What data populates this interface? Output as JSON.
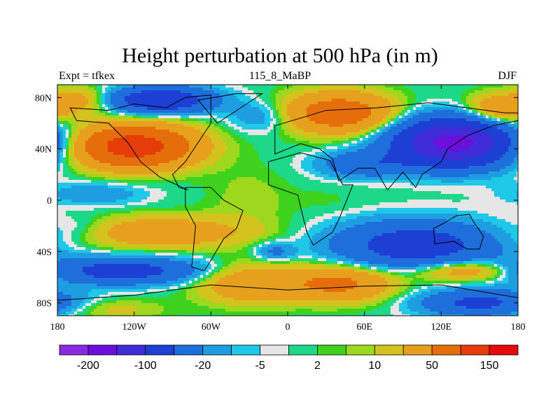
{
  "title": "Height perturbation at 500 hPa (in m)",
  "subtitle_left": "Expt = tfkex",
  "subtitle_center": "115_8_MaBP",
  "subtitle_right": "DJF",
  "chart_data": {
    "type": "heatmap",
    "title": "Height perturbation at 500 hPa (in m)",
    "xlim": [
      -180,
      180
    ],
    "ylim": [
      -90,
      90
    ],
    "x_ticks": [
      {
        "value": -180,
        "label": "180"
      },
      {
        "value": -120,
        "label": "120W"
      },
      {
        "value": -60,
        "label": "60W"
      },
      {
        "value": 0,
        "label": "0"
      },
      {
        "value": 60,
        "label": "60E"
      },
      {
        "value": 120,
        "label": "120E"
      },
      {
        "value": 180,
        "label": "180"
      }
    ],
    "y_ticks": [
      {
        "value": 80,
        "label": "80N"
      },
      {
        "value": 40,
        "label": "40N"
      },
      {
        "value": 0,
        "label": "0"
      },
      {
        "value": -40,
        "label": "40S"
      },
      {
        "value": -80,
        "label": "80S"
      }
    ],
    "colorbar": {
      "colors": [
        "#8a2be2",
        "#6a0fdc",
        "#3f2bd8",
        "#1e3fd4",
        "#1e6fdc",
        "#1e9ee0",
        "#1ec8e6",
        "#e6e6e6",
        "#1ed88a",
        "#3ed21e",
        "#9ed81e",
        "#d4c21e",
        "#e6a01e",
        "#e66e0a",
        "#e63c0a",
        "#e60a0a"
      ],
      "labels": [
        {
          "after_box": 1,
          "text": "-200"
        },
        {
          "after_box": 3,
          "text": "-100"
        },
        {
          "after_box": 5,
          "text": "-20"
        },
        {
          "after_box": 7,
          "text": "-5"
        },
        {
          "after_box": 9,
          "text": "2"
        },
        {
          "after_box": 11,
          "text": "10"
        },
        {
          "after_box": 13,
          "text": "50"
        },
        {
          "after_box": 15,
          "text": "150"
        }
      ]
    },
    "anomaly_blobs": [
      {
        "lon": -120,
        "lat": 42,
        "rlon": 45,
        "rlat": 16,
        "amp": 130
      },
      {
        "lon": -100,
        "lat": 78,
        "rlon": 40,
        "rlat": 10,
        "amp": -90
      },
      {
        "lon": -160,
        "lat": 78,
        "rlon": 25,
        "rlat": 10,
        "amp": 30
      },
      {
        "lon": 40,
        "lat": 68,
        "rlon": 40,
        "rlat": 15,
        "amp": 80
      },
      {
        "lon": 130,
        "lat": 45,
        "rlon": 45,
        "rlat": 18,
        "amp": -170
      },
      {
        "lon": 60,
        "lat": 28,
        "rlon": 35,
        "rlat": 10,
        "amp": -40
      },
      {
        "lon": 165,
        "lat": 70,
        "rlon": 25,
        "rlat": 12,
        "amp": 45
      },
      {
        "lon": -20,
        "lat": 65,
        "rlon": 25,
        "rlat": 12,
        "amp": -20
      },
      {
        "lon": -150,
        "lat": 5,
        "rlon": 40,
        "rlat": 9,
        "amp": -18
      },
      {
        "lon": -30,
        "lat": 0,
        "rlon": 30,
        "rlat": 25,
        "amp": 8
      },
      {
        "lon": 100,
        "lat": -35,
        "rlon": 60,
        "rlat": 18,
        "amp": -75
      },
      {
        "lon": -100,
        "lat": -25,
        "rlon": 65,
        "rlat": 12,
        "amp": 40
      },
      {
        "lon": -160,
        "lat": -22,
        "rlon": 25,
        "rlat": 10,
        "amp": -12
      },
      {
        "lon": -10,
        "lat": -40,
        "rlon": 15,
        "rlat": 7,
        "amp": -25
      },
      {
        "lon": -130,
        "lat": -55,
        "rlon": 60,
        "rlat": 10,
        "amp": -70
      },
      {
        "lon": -30,
        "lat": -65,
        "rlon": 40,
        "rlat": 15,
        "amp": 40
      },
      {
        "lon": 40,
        "lat": -65,
        "rlon": 40,
        "rlat": 13,
        "amp": 60
      },
      {
        "lon": 140,
        "lat": -55,
        "rlon": 40,
        "rlat": 8,
        "amp": 45
      },
      {
        "lon": 150,
        "lat": -80,
        "rlon": 45,
        "rlat": 10,
        "amp": -60
      },
      {
        "lon": -140,
        "lat": -85,
        "rlon": 40,
        "rlat": 8,
        "amp": 15
      },
      {
        "lon": 30,
        "lat": 0,
        "rlon": 30,
        "rlat": 10,
        "amp": 3
      }
    ]
  }
}
